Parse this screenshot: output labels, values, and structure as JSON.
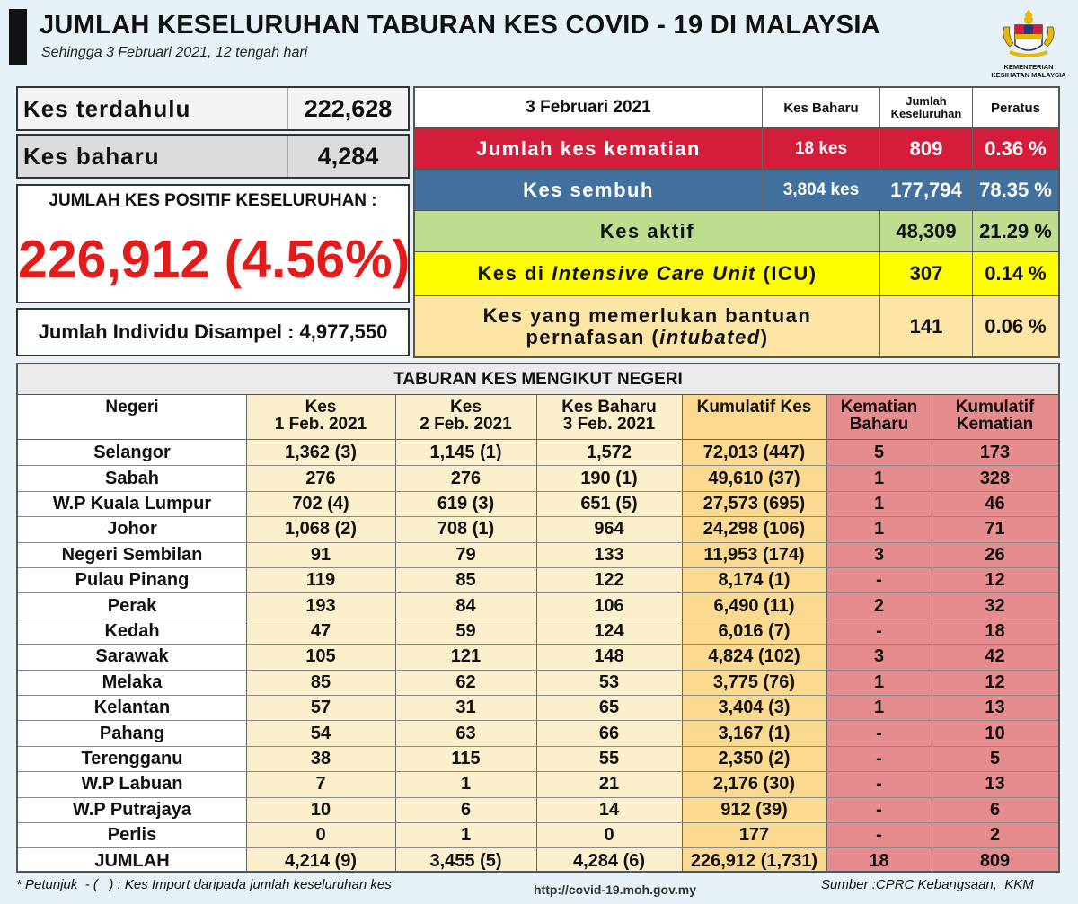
{
  "header": {
    "title": "JUMLAH KESELURUHAN TABURAN KES COVID - 19 DI MALAYSIA",
    "subtitle": "Sehingga 3 Februari 2021, 12 tengah hari",
    "logo_caption": "KEMENTERIAN KESIHATAN MALAYSIA"
  },
  "summary": {
    "previous_label": "Kes terdahulu",
    "previous_value": "222,628",
    "new_label": "Kes baharu",
    "new_value": "4,284",
    "positive_label": "JUMLAH KES POSITIF KESELURUHAN :",
    "positive_value": "226,912 (4.56%)",
    "sampled_text": "Jumlah Individu Disampel : 4,977,550"
  },
  "outcomes": {
    "headers": {
      "date": "3 Februari 2021",
      "new": "Kes Baharu",
      "total": "Jumlah Keseluruhan",
      "percent": "Peratus"
    },
    "death": {
      "label": "Jumlah kes kematian",
      "new": "18 kes",
      "total": "809",
      "percent": "0.36 %"
    },
    "recovered": {
      "label": "Kes sembuh",
      "new": "3,804 kes",
      "total": "177,794",
      "percent": "78.35 %"
    },
    "active": {
      "label": "Kes aktif",
      "total": "48,309",
      "percent": "21.29 %"
    },
    "icu": {
      "label_pre": "Kes di ",
      "label_italic": "Intensive Care Unit",
      "label_post": " (ICU)",
      "total": "307",
      "percent": "0.14 %"
    },
    "intubated": {
      "label_line1": "Kes yang memerlukan bantuan",
      "label_pre": "pernafasan (",
      "label_italic": "intubated",
      "label_post": ")",
      "total": "141",
      "percent": "0.06 %"
    }
  },
  "state_table": {
    "title": "TABURAN KES MENGIKUT NEGERI",
    "headers": {
      "state": "Negeri",
      "feb1_a": "Kes",
      "feb1_b": "1 Feb. 2021",
      "feb2_a": "Kes",
      "feb2_b": "2 Feb. 2021",
      "feb3_a": "Kes Baharu",
      "feb3_b": "3 Feb. 2021",
      "cumulative": "Kumulatif Kes",
      "new_deaths_a": "Kematian",
      "new_deaths_b": "Baharu",
      "cum_deaths_a": "Kumulatif",
      "cum_deaths_b": "Kematian"
    },
    "rows": [
      [
        "Selangor",
        "1,362 (3)",
        "1,145 (1)",
        "1,572",
        "72,013 (447)",
        "5",
        "173"
      ],
      [
        "Sabah",
        "276",
        "276",
        "190 (1)",
        "49,610 (37)",
        "1",
        "328"
      ],
      [
        "W.P Kuala Lumpur",
        "702 (4)",
        "619 (3)",
        "651 (5)",
        "27,573 (695)",
        "1",
        "46"
      ],
      [
        "Johor",
        "1,068 (2)",
        "708 (1)",
        "964",
        "24,298 (106)",
        "1",
        "71"
      ],
      [
        "Negeri Sembilan",
        "91",
        "79",
        "133",
        "11,953 (174)",
        "3",
        "26"
      ],
      [
        "Pulau Pinang",
        "119",
        "85",
        "122",
        "8,174 (1)",
        "-",
        "12"
      ],
      [
        "Perak",
        "193",
        "84",
        "106",
        "6,490 (11)",
        "2",
        "32"
      ],
      [
        "Kedah",
        "47",
        "59",
        "124",
        "6,016 (7)",
        "-",
        "18"
      ],
      [
        "Sarawak",
        "105",
        "121",
        "148",
        "4,824 (102)",
        "3",
        "42"
      ],
      [
        "Melaka",
        "85",
        "62",
        "53",
        "3,775 (76)",
        "1",
        "12"
      ],
      [
        "Kelantan",
        "57",
        "31",
        "65",
        "3,404 (3)",
        "1",
        "13"
      ],
      [
        "Pahang",
        "54",
        "63",
        "66",
        "3,167 (1)",
        "-",
        "10"
      ],
      [
        "Terengganu",
        "38",
        "115",
        "55",
        "2,350 (2)",
        "-",
        "5"
      ],
      [
        "W.P Labuan",
        "7",
        "1",
        "21",
        "2,176 (30)",
        "-",
        "13"
      ],
      [
        "W.P Putrajaya",
        "10",
        "6",
        "14",
        "912 (39)",
        "-",
        "6"
      ],
      [
        "Perlis",
        "0",
        "1",
        "0",
        "177",
        "-",
        "2"
      ]
    ],
    "total": [
      "JUMLAH",
      "4,214 (9)",
      "3,455 (5)",
      "4,284 (6)",
      "226,912 (1,731)",
      "18",
      "809"
    ]
  },
  "footer": {
    "note": "* Petunjuk  - (   ) : Kes Import daripada jumlah keseluruhan kes",
    "url": "http://covid-19.moh.gov.my",
    "source": "Sumber :CPRC Kebangsaan,  KKM"
  },
  "colors": {
    "death": "#d31d3b",
    "recovered": "#42719e",
    "active": "#bfdd8f",
    "icu": "#fefe00",
    "intubated": "#fce5a5",
    "positive_total": "#e31b1b",
    "daily_columns": "#fcefcb",
    "cumulative_column": "#fbd98e",
    "death_columns": "#e68c8e"
  }
}
